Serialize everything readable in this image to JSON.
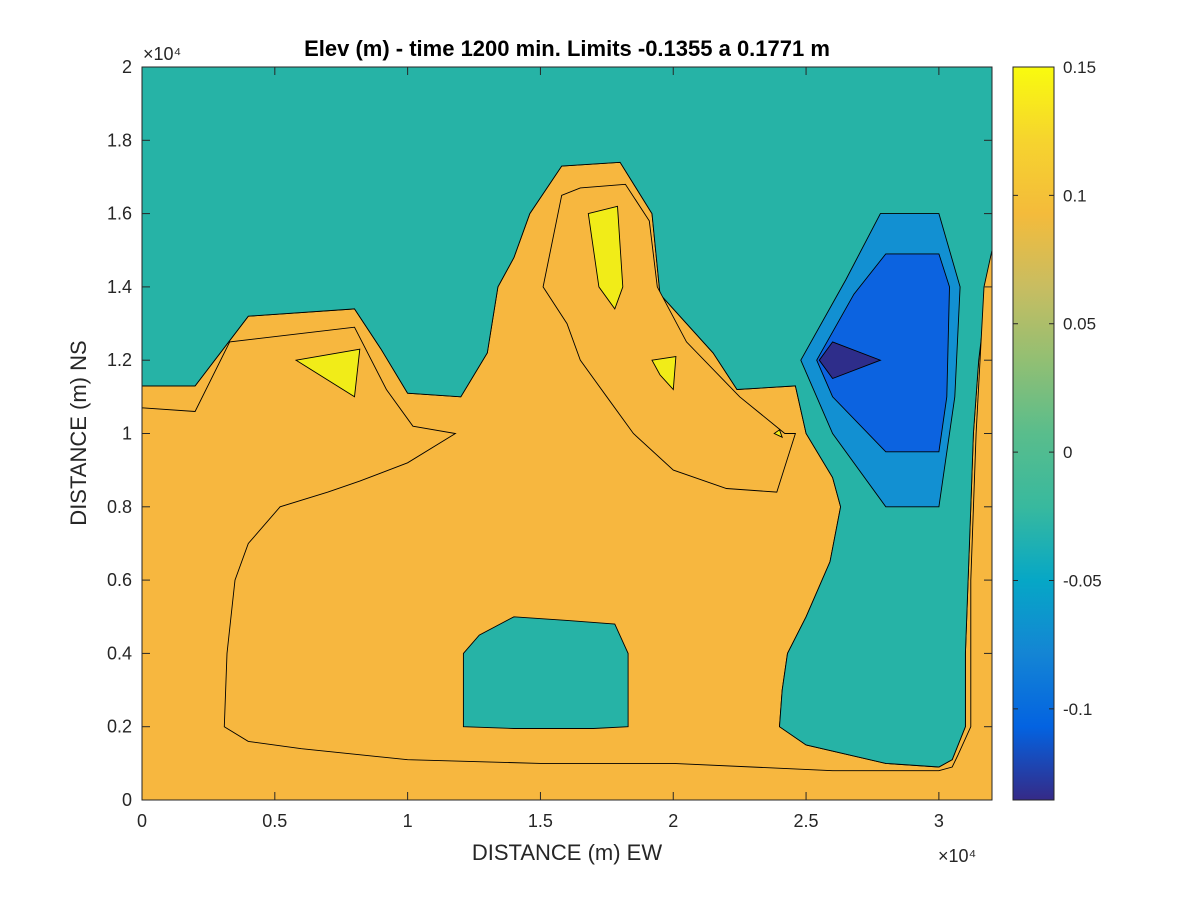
{
  "chart_data": {
    "type": "contour",
    "title": "Elev (m) - time 1200 min. Limits -0.1355 a 0.1771 m",
    "xlabel": "DISTANCE (m) EW",
    "ylabel": "DISTANCE (m) NS",
    "x_exponent_label": "×10⁴",
    "y_exponent_label": "×10⁴",
    "xlim": [
      0,
      32000
    ],
    "ylim": [
      0,
      20000
    ],
    "x_ticks": [
      0,
      5000,
      10000,
      15000,
      20000,
      25000,
      30000
    ],
    "x_tick_labels": [
      "0",
      "0.5",
      "1",
      "1.5",
      "2",
      "2.5",
      "3"
    ],
    "y_ticks": [
      0,
      2000,
      4000,
      6000,
      8000,
      10000,
      12000,
      14000,
      16000,
      18000,
      20000
    ],
    "y_tick_labels": [
      "0",
      "0.2",
      "0.4",
      "0.6",
      "0.8",
      "1",
      "1.2",
      "1.4",
      "1.6",
      "1.8",
      "2"
    ],
    "colorbar": {
      "range": [
        -0.1355,
        0.15
      ],
      "ticks": [
        0.15,
        0.1,
        0.05,
        0,
        -0.05,
        -0.1
      ],
      "tick_labels": [
        "0.15",
        "0.1",
        "0.05",
        "0",
        "-0.05",
        "-0.1"
      ],
      "colormap": "parula"
    },
    "level_colors": {
      "background": "#ffffff",
      "lvl_0_1": "#f7b73f",
      "lvl_0_05": "#9bbe6c",
      "lvl_0": "#26b3a6",
      "lvl_neg_0_05": "#1290d2",
      "lvl_neg_0_1": "#0c63e0",
      "lvl_neg_0_15": "#2e2d8a",
      "lvl_0_15": "#f1ec18"
    },
    "regions": [
      {
        "level": 0.125,
        "color": "#f7b73f",
        "points": [
          [
            0,
            0
          ],
          [
            32000,
            0
          ],
          [
            32000,
            20000
          ],
          [
            0,
            20000
          ]
        ]
      },
      {
        "level": 0.075,
        "color": "#9bbe6c",
        "points": [
          [
            0,
            11300
          ],
          [
            2000,
            11300
          ],
          [
            4000,
            13200
          ],
          [
            8000,
            13400
          ],
          [
            9000,
            12300
          ],
          [
            10000,
            11100
          ],
          [
            12000,
            11000
          ],
          [
            13000,
            12200
          ],
          [
            13400,
            14000
          ],
          [
            14000,
            14800
          ],
          [
            14600,
            16000
          ],
          [
            15800,
            17300
          ],
          [
            18000,
            17400
          ],
          [
            19200,
            16000
          ],
          [
            19500,
            13800
          ],
          [
            21500,
            12200
          ],
          [
            22400,
            11200
          ],
          [
            24600,
            11300
          ],
          [
            25000,
            10000
          ],
          [
            26000,
            8800
          ],
          [
            26300,
            8000
          ],
          [
            25900,
            6500
          ],
          [
            25000,
            5000
          ],
          [
            24300,
            4000
          ],
          [
            24100,
            3000
          ],
          [
            24000,
            2000
          ],
          [
            25000,
            1500
          ],
          [
            28000,
            1000
          ],
          [
            30000,
            900
          ],
          [
            30500,
            1100
          ],
          [
            31000,
            2000
          ],
          [
            31000,
            4000
          ],
          [
            31200,
            8000
          ],
          [
            31300,
            10000
          ],
          [
            31500,
            12000
          ],
          [
            32000,
            15000
          ],
          [
            32000,
            20000
          ],
          [
            0,
            20000
          ]
        ]
      },
      {
        "level": 0.025,
        "color": "#26b3a6",
        "points": [
          [
            0,
            11300
          ],
          [
            2000,
            11300
          ],
          [
            4000,
            13200
          ],
          [
            8000,
            13400
          ],
          [
            9000,
            12300
          ],
          [
            10000,
            11100
          ],
          [
            12000,
            11000
          ],
          [
            13000,
            12200
          ],
          [
            13400,
            14000
          ],
          [
            14000,
            14800
          ],
          [
            14600,
            16000
          ],
          [
            15800,
            17300
          ],
          [
            18000,
            17400
          ],
          [
            19200,
            16000
          ],
          [
            19500,
            13800
          ],
          [
            21500,
            12200
          ],
          [
            22400,
            11200
          ],
          [
            24600,
            11300
          ],
          [
            25000,
            10000
          ],
          [
            26000,
            8800
          ],
          [
            26300,
            8000
          ],
          [
            25900,
            6500
          ],
          [
            25000,
            5000
          ],
          [
            24300,
            4000
          ],
          [
            24100,
            3000
          ],
          [
            24000,
            2000
          ],
          [
            25000,
            1500
          ],
          [
            28000,
            1000
          ],
          [
            30000,
            900
          ],
          [
            30500,
            1100
          ],
          [
            31000,
            2000
          ],
          [
            31000,
            4000
          ],
          [
            31200,
            8000
          ],
          [
            31300,
            10000
          ],
          [
            31500,
            12000
          ],
          [
            32000,
            15000
          ],
          [
            32000,
            20000
          ],
          [
            0,
            20000
          ]
        ]
      },
      {
        "level": -0.025,
        "color": "#1290d2",
        "points": [
          [
            24800,
            12000
          ],
          [
            26500,
            14200
          ],
          [
            27800,
            16000
          ],
          [
            30000,
            16000
          ],
          [
            30800,
            14000
          ],
          [
            30600,
            11000
          ],
          [
            30000,
            8000
          ],
          [
            28000,
            8000
          ],
          [
            26000,
            10000
          ]
        ]
      },
      {
        "level": -0.075,
        "color": "#0c63e0",
        "points": [
          [
            25400,
            12000
          ],
          [
            26800,
            13800
          ],
          [
            28000,
            14900
          ],
          [
            30000,
            14900
          ],
          [
            30400,
            14000
          ],
          [
            30300,
            11000
          ],
          [
            30000,
            9500
          ],
          [
            28000,
            9500
          ],
          [
            26000,
            11000
          ]
        ]
      },
      {
        "level": -0.125,
        "color": "#2e2d8a",
        "points": [
          [
            25500,
            12000
          ],
          [
            26000,
            12500
          ],
          [
            27800,
            12000
          ],
          [
            26000,
            11500
          ]
        ]
      },
      {
        "level": 0.125,
        "color": "#f7b73f",
        "points": [
          [
            0,
            10700
          ],
          [
            2000,
            10600
          ],
          [
            3300,
            12500
          ],
          [
            8000,
            12900
          ],
          [
            9200,
            11200
          ],
          [
            10200,
            10200
          ],
          [
            11800,
            10000
          ],
          [
            10000,
            9200
          ],
          [
            8200,
            8700
          ],
          [
            7000,
            8400
          ],
          [
            5200,
            8000
          ],
          [
            4000,
            7000
          ],
          [
            3500,
            6000
          ],
          [
            3200,
            4000
          ],
          [
            3100,
            2000
          ],
          [
            4000,
            1600
          ],
          [
            6000,
            1400
          ],
          [
            10000,
            1100
          ],
          [
            15000,
            1000
          ],
          [
            20000,
            1000
          ],
          [
            26000,
            800
          ],
          [
            30000,
            800
          ],
          [
            30500,
            900
          ],
          [
            30700,
            1200
          ],
          [
            31200,
            2000
          ],
          [
            31200,
            6000
          ],
          [
            31400,
            10000
          ],
          [
            31700,
            14000
          ],
          [
            32000,
            15000
          ],
          [
            32000,
            0
          ],
          [
            0,
            0
          ]
        ]
      },
      {
        "level": 0.125,
        "color": "#f7b73f",
        "points": [
          [
            15100,
            14000
          ],
          [
            15800,
            16500
          ],
          [
            16500,
            16700
          ],
          [
            18200,
            16800
          ],
          [
            19100,
            15800
          ],
          [
            19400,
            14000
          ],
          [
            20500,
            12500
          ],
          [
            22500,
            11000
          ],
          [
            24200,
            10000
          ],
          [
            24600,
            10000
          ],
          [
            23900,
            8400
          ],
          [
            22000,
            8500
          ],
          [
            20000,
            9000
          ],
          [
            18500,
            10000
          ],
          [
            17500,
            11000
          ],
          [
            16500,
            12000
          ],
          [
            16000,
            13000
          ]
        ]
      },
      {
        "level": 0.025,
        "color": "#26b3a6",
        "points": [
          [
            12100,
            4000
          ],
          [
            12100,
            2000
          ],
          [
            14000,
            1950
          ],
          [
            17000,
            1950
          ],
          [
            18300,
            2000
          ],
          [
            18300,
            4000
          ],
          [
            17800,
            4800
          ],
          [
            16000,
            4900
          ],
          [
            14000,
            5000
          ],
          [
            12700,
            4500
          ]
        ]
      },
      {
        "level": 0.175,
        "color": "#f1ec18",
        "points": [
          [
            5800,
            12000
          ],
          [
            8200,
            12300
          ],
          [
            8000,
            11000
          ]
        ]
      },
      {
        "level": 0.175,
        "color": "#f1ec18",
        "points": [
          [
            16800,
            16000
          ],
          [
            17900,
            16200
          ],
          [
            18100,
            14000
          ],
          [
            17800,
            13400
          ],
          [
            17200,
            14000
          ]
        ]
      },
      {
        "level": 0.175,
        "color": "#f1ec18",
        "points": [
          [
            19200,
            12000
          ],
          [
            20100,
            12100
          ],
          [
            20000,
            11200
          ],
          [
            19500,
            11600
          ]
        ]
      },
      {
        "level": 0.175,
        "color": "#f1ec18",
        "points": [
          [
            23800,
            10000
          ],
          [
            24100,
            9900
          ],
          [
            24000,
            10100
          ]
        ]
      }
    ]
  }
}
